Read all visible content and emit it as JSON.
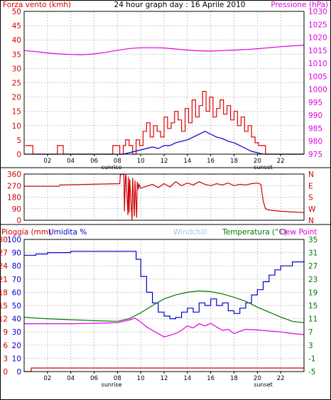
{
  "chart_data": [
    {
      "type": "line",
      "title": "24 hour graph day : 16 Aprile 2010",
      "ylabel_left": "Forza vento (kmh)",
      "ylabel_right": "Pressione (hPa)",
      "ylim_left": [
        0,
        50
      ],
      "ylim_right": [
        975,
        1030
      ],
      "yticks_left": [
        "0",
        "5",
        "10",
        "15",
        "20",
        "25",
        "30",
        "35",
        "40",
        "45",
        "50"
      ],
      "yticks_right": [
        "975",
        "980",
        "985",
        "990",
        "995",
        "1000",
        "1005",
        "1010",
        "1015",
        "1020",
        "1025",
        "1030"
      ],
      "xticks": [
        "02",
        "04",
        "06",
        "08",
        "10",
        "12",
        "14",
        "16",
        "18",
        "20",
        "22"
      ],
      "xlim": [
        0,
        24
      ],
      "sunrise_label": "sunrise",
      "sunset_label": "sunset",
      "sunrise_hour": 7.5,
      "sunset_hour": 20.5,
      "grid": true,
      "series": [
        {
          "axis": "right",
          "color": "#dd00dd",
          "x": [
            0,
            1,
            2,
            3,
            4,
            5,
            6,
            7,
            8,
            9,
            10,
            11,
            12,
            13,
            14,
            15,
            16,
            17,
            18,
            19,
            20,
            21,
            22,
            23,
            24
          ],
          "values": [
            1014.9,
            1014.5,
            1014.0,
            1013.6,
            1013.4,
            1013.3,
            1013.6,
            1014.2,
            1015.0,
            1015.7,
            1016.0,
            1016.0,
            1015.9,
            1015.5,
            1015.1,
            1014.8,
            1014.7,
            1014.9,
            1015.1,
            1015.3,
            1015.6,
            1016.0,
            1016.4,
            1016.7,
            1017.0
          ]
        },
        {
          "axis": "left",
          "color": "#dd0000",
          "x": [
            0.1,
            0.25,
            0.5,
            0.75,
            2.6,
            2.85,
            3.1,
            3.35,
            7.6,
            7.9,
            8.2,
            8.5,
            8.7,
            9.0,
            9.3,
            9.6,
            9.9,
            10.2,
            10.5,
            10.8,
            11.1,
            11.4,
            11.7,
            12.0,
            12.3,
            12.6,
            12.9,
            13.2,
            13.5,
            13.8,
            14.1,
            14.4,
            14.7,
            15.0,
            15.3,
            15.6,
            15.9,
            16.2,
            16.5,
            16.8,
            17.1,
            17.4,
            17.7,
            18.0,
            18.3,
            18.6,
            18.9,
            19.2,
            19.5,
            19.8,
            20.1,
            20.4,
            20.7,
            21.0,
            24.0
          ],
          "values": [
            3,
            3,
            3,
            0,
            0,
            3,
            3,
            0,
            3,
            3,
            0,
            3,
            5,
            3,
            0,
            5,
            3,
            8,
            11,
            6,
            10,
            8,
            6,
            13,
            9,
            11,
            15,
            12,
            8,
            16,
            11,
            19,
            13,
            17,
            22,
            15,
            20,
            13,
            16,
            19,
            14,
            17,
            12,
            15,
            10,
            13,
            8,
            10,
            6,
            4,
            3,
            3,
            0,
            0,
            0
          ]
        },
        {
          "axis": "left",
          "color": "#0000cc",
          "x": [
            0,
            8.5,
            9.0,
            9.5,
            10.0,
            10.5,
            11.0,
            11.5,
            12.0,
            12.5,
            13.0,
            13.5,
            14.0,
            14.5,
            15.0,
            15.5,
            16.0,
            16.5,
            17.0,
            17.5,
            18.0,
            18.5,
            19.0,
            19.5,
            20.0,
            20.5,
            24.0
          ],
          "values": [
            0,
            0,
            0.5,
            1,
            1.5,
            2,
            2.5,
            2,
            3,
            3,
            4,
            4.5,
            5,
            6,
            7,
            8,
            7,
            6,
            5.5,
            4.5,
            4,
            3,
            2,
            1,
            0.5,
            0,
            0
          ]
        }
      ]
    },
    {
      "type": "line",
      "yticks_left": [
        "0",
        "90",
        "180",
        "270",
        "360"
      ],
      "yticks_right": [
        "N",
        "E",
        "S",
        "W",
        "N"
      ],
      "ylim": [
        0,
        360
      ],
      "xlim": [
        0,
        24
      ],
      "grid": true,
      "series": [
        {
          "color": "#cc0000",
          "x": [
            0,
            3.0,
            3.05,
            8.2,
            8.25,
            8.55,
            8.6,
            8.7,
            8.75,
            8.9,
            8.95,
            9.0,
            9.05,
            9.25,
            9.3,
            9.45,
            9.5,
            9.65,
            9.7,
            9.8,
            9.85,
            10.0,
            10.5,
            11.0,
            11.5,
            12.0,
            12.5,
            13.0,
            13.5,
            14.0,
            14.5,
            15.0,
            15.5,
            16.0,
            16.5,
            17.0,
            17.5,
            18.0,
            18.5,
            19.0,
            19.5,
            20.0,
            20.3,
            20.5,
            20.7,
            21.0,
            22.0,
            24.0
          ],
          "values": [
            265,
            265,
            275,
            285,
            355,
            360,
            70,
            360,
            330,
            40,
            340,
            60,
            320,
            0,
            330,
            30,
            310,
            20,
            300,
            240,
            280,
            250,
            265,
            280,
            255,
            285,
            260,
            300,
            270,
            290,
            275,
            300,
            280,
            270,
            285,
            275,
            290,
            270,
            280,
            275,
            285,
            290,
            280,
            150,
            90,
            80,
            70,
            60
          ]
        }
      ]
    },
    {
      "type": "line",
      "labels": {
        "rain": "Pioggia (mm)",
        "humidity": "Umidita %",
        "windchill": "Windchill",
        "temperature": "Temperatura (°C)",
        "dewpoint": "Dew Point"
      },
      "ylim_humidity": [
        0,
        100
      ],
      "ylim_rain": [
        0,
        30
      ],
      "ylim_temp": [
        -5,
        35
      ],
      "yticks_humidity": [
        "0",
        "10",
        "20",
        "30",
        "40",
        "50",
        "60",
        "70",
        "80",
        "90",
        "100"
      ],
      "yticks_rain": [
        "0",
        "3",
        "6",
        "9",
        "12",
        "15",
        "18",
        "21",
        "24",
        "27",
        "30"
      ],
      "yticks_temp": [
        "-5",
        "-1",
        "3",
        "7",
        "11",
        "15",
        "19",
        "23",
        "27",
        "31",
        "35"
      ],
      "xticks": [
        "02",
        "04",
        "06",
        "08",
        "10",
        "12",
        "14",
        "16",
        "18",
        "20",
        "22"
      ],
      "xlim": [
        0,
        24
      ],
      "sunrise_label": "sunrise",
      "sunset_label": "sunset",
      "sunrise_hour": 7.5,
      "sunset_hour": 20.5,
      "grid": true,
      "series": [
        {
          "name": "Umidita %",
          "axis": "humidity",
          "color": "#0000cc",
          "x": [
            0,
            1,
            2,
            4,
            6,
            8,
            9.3,
            9.6,
            10.0,
            10.5,
            11.0,
            11.5,
            12.0,
            12.5,
            13.0,
            13.5,
            14.0,
            14.5,
            15.0,
            15.5,
            16.0,
            16.5,
            17.0,
            17.5,
            18.0,
            18.5,
            19.0,
            19.5,
            20.0,
            20.5,
            21.0,
            21.5,
            22.0,
            23.0,
            24.0
          ],
          "values": [
            88,
            89,
            90,
            91,
            91,
            91,
            91,
            85,
            72,
            60,
            52,
            45,
            42,
            40,
            41,
            45,
            48,
            45,
            52,
            50,
            55,
            50,
            52,
            46,
            44,
            48,
            52,
            58,
            62,
            68,
            73,
            77,
            80,
            83,
            84
          ]
        },
        {
          "name": "Temperatura (°C)",
          "axis": "temp",
          "color": "#007700",
          "x": [
            0,
            1,
            2,
            4,
            6,
            8,
            9,
            10,
            11,
            12,
            13,
            14,
            15,
            16,
            17,
            18,
            19,
            20,
            21,
            22,
            23,
            24
          ],
          "values": [
            11.5,
            11.2,
            11.0,
            10.7,
            10.4,
            10.2,
            11.0,
            12.8,
            15.0,
            17.0,
            18.2,
            19.0,
            19.4,
            19.2,
            18.5,
            17.5,
            16.3,
            14.5,
            13.0,
            11.5,
            10.2,
            9.8
          ]
        },
        {
          "name": "Dew Point",
          "axis": "temp",
          "color": "#dd00dd",
          "x": [
            0,
            2,
            4,
            6,
            8,
            9,
            9.5,
            10,
            10.5,
            11,
            11.5,
            12,
            12.5,
            13,
            13.5,
            14,
            14.5,
            15,
            15.5,
            16,
            16.5,
            17,
            17.5,
            18,
            18.5,
            19,
            20,
            21,
            22,
            23,
            24
          ],
          "values": [
            9.5,
            9.5,
            9.5,
            9.6,
            9.8,
            10.6,
            11.2,
            10.0,
            8.5,
            7.5,
            6.5,
            5.5,
            6.0,
            6.5,
            7.5,
            8.8,
            8.2,
            9.5,
            8.8,
            9.6,
            8.5,
            7.5,
            7.8,
            6.5,
            7.2,
            7.8,
            7.6,
            7.3,
            7.0,
            6.5,
            6.2
          ]
        },
        {
          "name": "Pioggia (mm)",
          "axis": "rain",
          "color": "#cc0000",
          "x": [
            0,
            0.5,
            0.6,
            24
          ],
          "values": [
            0,
            0,
            0.8,
            0.8
          ]
        }
      ]
    }
  ]
}
